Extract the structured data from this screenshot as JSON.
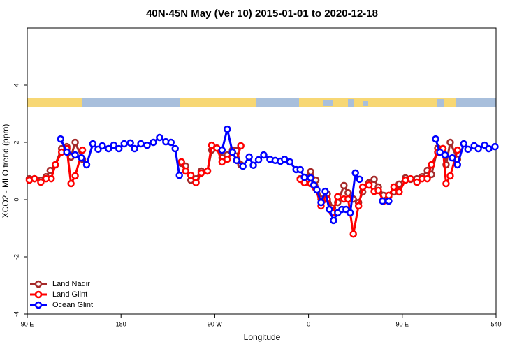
{
  "chart_data": {
    "type": "line",
    "title": "40N-45N May (Ver 10)   2015-01-01 to 2020-12-18",
    "x_label": "Longitude",
    "y_label": "XCO2 - MLO trend (ppm)",
    "xlim": [
      90,
      540
    ],
    "ylim": [
      -4,
      6
    ],
    "xticks": [
      {
        "value": 90,
        "label": "90 E"
      },
      180,
      {
        "value": 270,
        "label": "90 W"
      },
      {
        "value": 360,
        "label": "0"
      },
      {
        "value": 450,
        "label": "90 E"
      },
      540
    ],
    "yticks": [
      -4,
      -2,
      0,
      2,
      4
    ],
    "legend": "bottom-left",
    "series": [
      {
        "name": "Land Nadir",
        "color": "#a52a2a",
        "x": [
          92,
          97,
          103,
          108,
          112,
          117,
          123,
          128,
          132,
          136,
          143,
          null,
          238,
          242,
          247,
          252,
          257,
          263,
          267,
          272,
          277,
          282,
          287,
          291,
          295,
          null,
          352,
          356,
          362,
          367,
          372,
          378,
          383,
          388,
          394,
          398,
          403,
          408,
          412,
          418,
          423,
          427,
          432,
          437,
          442,
          447,
          453,
          458,
          464,
          469,
          474,
          478,
          484,
          489,
          492,
          496,
          503
        ],
        "values": [
          0.73,
          0.73,
          0.68,
          0.8,
          1.02,
          1.22,
          1.78,
          1.85,
          1.49,
          2.0,
          1.41,
          null,
          1.27,
          1.17,
          0.68,
          0.73,
          1.0,
          1.0,
          1.73,
          1.8,
          1.46,
          1.56,
          1.73,
          1.71,
          1.22,
          null,
          0.73,
          0.73,
          0.98,
          0.68,
          0.02,
          0.2,
          -0.29,
          -0.1,
          0.49,
          0.24,
          0.02,
          -0.1,
          0.27,
          0.59,
          0.71,
          0.44,
          0.15,
          0.12,
          0.27,
          0.54,
          0.76,
          0.71,
          0.73,
          0.8,
          1.02,
          0.88,
          1.8,
          1.78,
          1.22,
          2.0,
          1.41
        ]
      },
      {
        "name": "Land Glint",
        "color": "#ff0000",
        "x": [
          92,
          97,
          103,
          108,
          113,
          117,
          123,
          128,
          132,
          136,
          143,
          null,
          238,
          242,
          247,
          252,
          257,
          263,
          267,
          272,
          277,
          282,
          287,
          291,
          295,
          null,
          352,
          356,
          362,
          367,
          372,
          378,
          383,
          388,
          394,
          398,
          403,
          408,
          412,
          418,
          423,
          427,
          432,
          437,
          442,
          447,
          453,
          458,
          464,
          469,
          474,
          478,
          484,
          489,
          492,
          496,
          503
        ],
        "values": [
          0.68,
          0.73,
          0.61,
          0.73,
          0.73,
          1.22,
          1.66,
          1.78,
          0.56,
          0.83,
          1.73,
          null,
          1.32,
          1.0,
          0.85,
          0.59,
          0.93,
          1.0,
          1.9,
          1.8,
          1.32,
          1.41,
          1.66,
          1.37,
          1.88,
          null,
          0.71,
          0.59,
          0.56,
          0.39,
          -0.22,
          0.02,
          -0.46,
          0.1,
          0.02,
          0.02,
          -1.2,
          -0.22,
          0.44,
          0.51,
          0.29,
          0.32,
          -0.05,
          0.15,
          0.44,
          0.27,
          0.68,
          0.73,
          0.61,
          0.73,
          0.73,
          1.22,
          1.66,
          1.78,
          0.56,
          0.83,
          1.73
        ]
      },
      {
        "name": "Ocean Glint",
        "color": "#0000ff",
        "x": [
          122,
          128,
          136,
          142,
          147,
          153,
          158,
          162,
          168,
          173,
          178,
          183,
          189,
          193,
          199,
          205,
          211,
          217,
          223,
          228,
          232,
          236,
          null,
          277,
          282,
          287,
          291,
          297,
          303,
          307,
          312,
          317,
          323,
          328,
          333,
          337,
          342,
          348,
          352,
          356,
          362,
          365,
          368,
          372,
          376,
          380,
          384,
          388,
          392,
          396,
          400,
          405,
          409,
          null,
          431,
          437,
          null,
          482,
          486,
          491,
          498,
          503,
          509,
          513,
          519,
          523,
          529,
          533,
          539
        ],
        "values": [
          2.12,
          1.66,
          1.56,
          1.46,
          1.22,
          1.95,
          1.76,
          1.88,
          1.78,
          1.9,
          1.78,
          1.95,
          1.98,
          1.78,
          1.95,
          1.9,
          2.0,
          2.17,
          2.02,
          2.0,
          1.78,
          0.85,
          null,
          1.73,
          2.46,
          1.66,
          1.37,
          1.17,
          1.49,
          1.2,
          1.39,
          1.56,
          1.41,
          1.37,
          1.34,
          1.41,
          1.32,
          1.05,
          1.05,
          0.78,
          0.76,
          0.51,
          0.34,
          -0.1,
          0.29,
          -0.34,
          -0.73,
          -0.46,
          -0.34,
          -0.34,
          -0.46,
          0.93,
          0.71,
          null,
          -0.05,
          -0.05,
          null,
          2.12,
          1.66,
          1.56,
          1.46,
          1.22,
          1.95,
          1.76,
          1.88,
          1.78,
          1.9,
          1.78,
          1.85
        ]
      }
    ]
  }
}
